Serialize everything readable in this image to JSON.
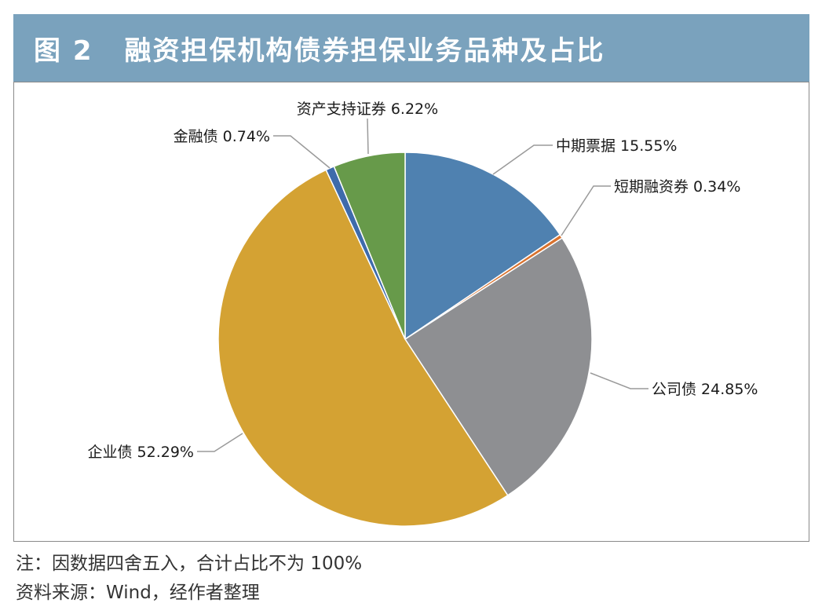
{
  "header": {
    "figure_label": "图 2",
    "title": "融资担保机构债券担保业务品种及占比"
  },
  "chart_data": {
    "type": "pie",
    "title": "融资担保机构债券担保业务品种及占比",
    "unit": "%",
    "slices": [
      {
        "label": "中期票据 15.55%",
        "name": "中期票据",
        "value": 15.55,
        "color": "#4f81b0"
      },
      {
        "label": "短期融资券 0.34%",
        "name": "短期融资券",
        "value": 0.34,
        "color": "#d9722e"
      },
      {
        "label": "公司债 24.85%",
        "name": "公司债",
        "value": 24.85,
        "color": "#8e8f92"
      },
      {
        "label": "企业债 52.29%",
        "name": "企业债",
        "value": 52.29,
        "color": "#d4a233"
      },
      {
        "label": "金融债 0.74%",
        "name": "金融债",
        "value": 0.74,
        "color": "#3e6bab"
      },
      {
        "label": "资产支持证券 6.22%",
        "name": "资产支持证券",
        "value": 6.22,
        "color": "#679a4a"
      }
    ]
  },
  "notes": {
    "note": "注：因数据四舍五入，合计占比不为 100%",
    "source": "资料来源：Wind，经作者整理"
  }
}
